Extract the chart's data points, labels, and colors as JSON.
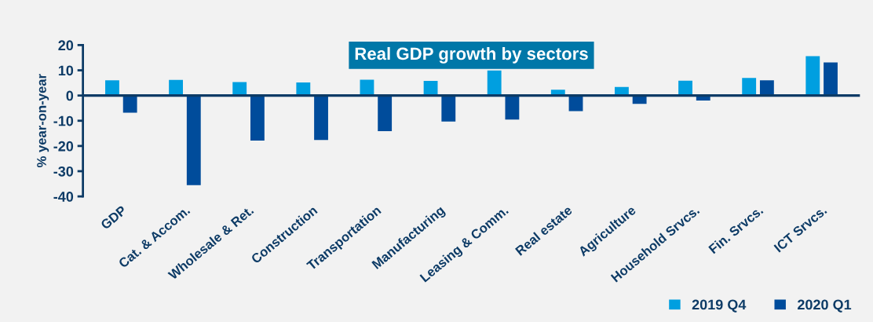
{
  "chart_data": {
    "type": "bar",
    "title": "Real GDP growth by sectors",
    "ylabel": "% year-on-year",
    "categories": [
      "GDP",
      "Cat. & Accom.",
      "Wholesale & Ret.",
      "Construction",
      "Transportation",
      "Manufacturing",
      "Leasing & Comm.",
      "Real estate",
      "Agriculture",
      "Household Srvcs.",
      "Fin. Srvcs.",
      "ICT Srvcs."
    ],
    "series": [
      {
        "name": "2019 Q4",
        "color": "#009fe0",
        "values": [
          6.0,
          6.2,
          5.3,
          5.2,
          6.3,
          5.8,
          9.9,
          2.3,
          3.4,
          5.9,
          7.0,
          15.6
        ]
      },
      {
        "name": "2020 Q1",
        "color": "#004c9b",
        "values": [
          -6.8,
          -35.5,
          -17.9,
          -17.6,
          -14.1,
          -10.3,
          -9.5,
          -6.2,
          -3.3,
          -2.0,
          6.0,
          13.1
        ]
      }
    ],
    "ylim": [
      -40,
      20
    ],
    "yticks": [
      -40,
      -30,
      -20,
      -10,
      0,
      10,
      20
    ],
    "ref_lines": [
      {
        "axis": "y",
        "value": 0,
        "color": "#0d3b66"
      }
    ],
    "grid": false,
    "legend": "bottom right"
  }
}
